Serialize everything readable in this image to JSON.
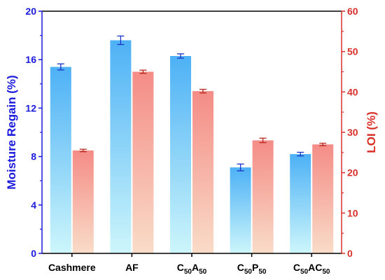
{
  "chart_data": {
    "type": "bar",
    "categories": [
      "Cashmere",
      "AF",
      "C50A50",
      "C50P50",
      "C50AC50"
    ],
    "category_parts": [
      [
        {
          "t": "Cashmere",
          "sub": false
        }
      ],
      [
        {
          "t": "AF",
          "sub": false
        }
      ],
      [
        {
          "t": "C",
          "sub": false
        },
        {
          "t": "50",
          "sub": true
        },
        {
          "t": "A",
          "sub": false
        },
        {
          "t": "50",
          "sub": true
        }
      ],
      [
        {
          "t": "C",
          "sub": false
        },
        {
          "t": "50",
          "sub": true
        },
        {
          "t": "P",
          "sub": false
        },
        {
          "t": "50",
          "sub": true
        }
      ],
      [
        {
          "t": "C",
          "sub": false
        },
        {
          "t": "50",
          "sub": true
        },
        {
          "t": "AC",
          "sub": false
        },
        {
          "t": "50",
          "sub": true
        }
      ]
    ],
    "series": [
      {
        "axis": "left",
        "values": [
          15.4,
          17.6,
          16.3,
          7.1,
          8.2
        ],
        "errors": [
          0.25,
          0.35,
          0.18,
          0.28,
          0.15
        ]
      },
      {
        "axis": "right",
        "values": [
          25.5,
          45.0,
          40.2,
          28.0,
          27.0
        ],
        "errors": [
          0.3,
          0.4,
          0.45,
          0.55,
          0.3
        ]
      }
    ],
    "left_axis": {
      "label": "Moisture Regain (%)",
      "ylim": [
        0,
        20
      ],
      "ticks": [
        "0",
        "4",
        "8",
        "12",
        "16",
        "20"
      ],
      "color": "#1a1adc"
    },
    "right_axis": {
      "label": "LOI (%)",
      "ylim": [
        0,
        60
      ],
      "ticks": [
        "0",
        "10",
        "20",
        "30",
        "40",
        "50",
        "60"
      ],
      "color": "#d9302a"
    },
    "colors": {
      "left_bar_top": "#4db1f5",
      "left_bar_bottom": "#cdf6fb",
      "left_error": "#1a33c8",
      "right_bar_top": "#f48c86",
      "right_bar_bottom": "#f9dcc8",
      "right_error": "#b8261e"
    },
    "grid": false,
    "legend": "none"
  }
}
